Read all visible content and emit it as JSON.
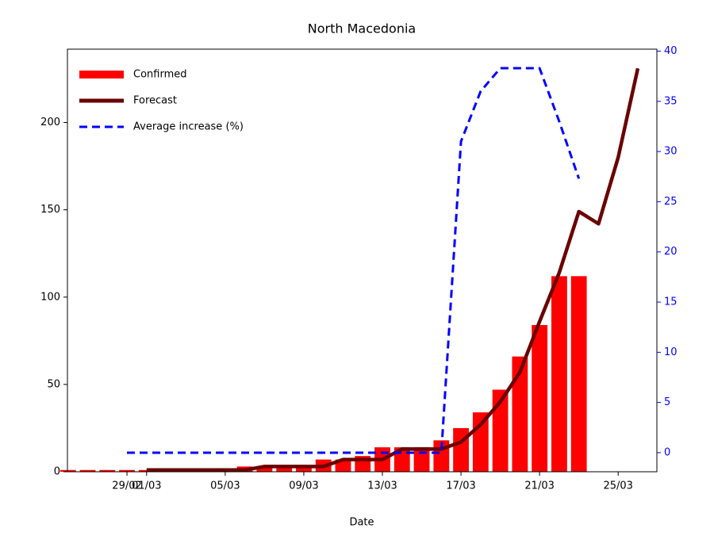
{
  "chart_data": {
    "type": "bar",
    "title": "North Macedonia",
    "x_label": "Date",
    "categories": [
      null,
      null,
      null,
      "29/02",
      "01/03",
      null,
      null,
      null,
      "05/03",
      null,
      null,
      null,
      "09/03",
      null,
      null,
      null,
      "13/03",
      null,
      null,
      null,
      "17/03",
      null,
      null,
      null,
      "21/03",
      null,
      null,
      null,
      "25/03",
      null
    ],
    "series": [
      {
        "name": "Confirmed",
        "type": "bar",
        "color": "#ff0000",
        "values": [
          1,
          1,
          1,
          1,
          1,
          1,
          1,
          1,
          1,
          3,
          3,
          3,
          3,
          7,
          7,
          9,
          14,
          14,
          14,
          18,
          25,
          34,
          47,
          66,
          84,
          112,
          112,
          null,
          null,
          null
        ]
      },
      {
        "name": "Forecast",
        "type": "line",
        "color": "#6b0000",
        "values": [
          null,
          null,
          null,
          null,
          1,
          1,
          1,
          1,
          1,
          1,
          3,
          3,
          3,
          3,
          7,
          7,
          7,
          13,
          13,
          13,
          17,
          27,
          40,
          57,
          86,
          114,
          149,
          142,
          180,
          231
        ]
      },
      {
        "name": "Average increase (%)",
        "type": "line",
        "dash": "dashed",
        "axis": "y2",
        "color": "#0000ff",
        "values": [
          null,
          null,
          null,
          0,
          0,
          0,
          0,
          0,
          0,
          0,
          0,
          0,
          0,
          0,
          0,
          0,
          0,
          0,
          0,
          0,
          31,
          36,
          38.3,
          38.3,
          38.3,
          33,
          27.3,
          null,
          null,
          null
        ]
      }
    ],
    "ylim": [
      0,
      242
    ],
    "yticks": [
      0,
      50,
      100,
      150,
      200
    ],
    "y2lim": [
      -1.9,
      40.2
    ],
    "y2ticks": [
      0,
      5,
      10,
      15,
      20,
      25,
      30,
      35,
      40
    ],
    "y2_color": "#0000ff",
    "legend": "upper-left",
    "grid": false
  }
}
